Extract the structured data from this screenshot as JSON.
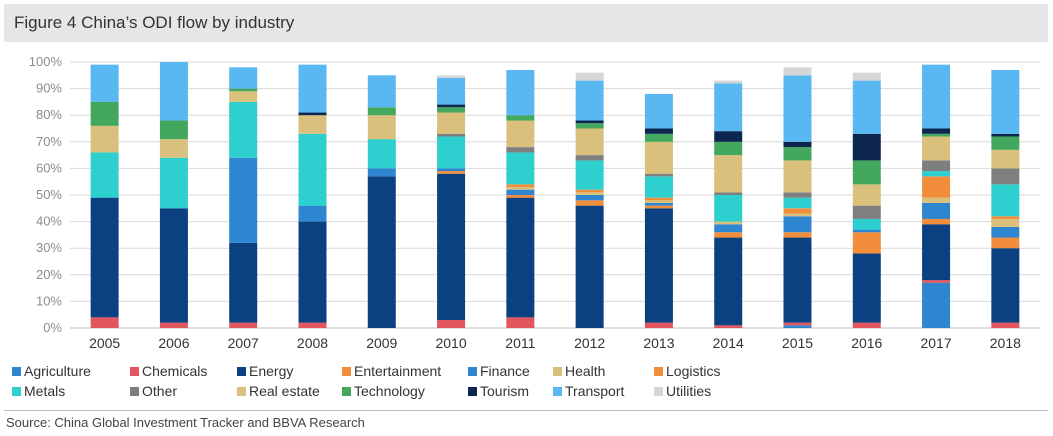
{
  "title": "Figure 4 China’s ODI flow by industry",
  "source": "Source: China Global Investment Tracker and BBVA Research",
  "chart_data": {
    "type": "bar",
    "stacked": true,
    "percent": true,
    "categories": [
      "2005",
      "2006",
      "2007",
      "2008",
      "2009",
      "2010",
      "2011",
      "2012",
      "2013",
      "2014",
      "2015",
      "2016",
      "2017",
      "2018"
    ],
    "ylim": [
      0,
      100
    ],
    "yticks": [
      "0%",
      "10%",
      "20%",
      "30%",
      "40%",
      "50%",
      "60%",
      "70%",
      "80%",
      "90%",
      "100%"
    ],
    "grid": true,
    "legend_position": "bottom",
    "series": [
      {
        "name": "Agriculture",
        "color": "#2e86d1",
        "values": [
          0,
          0,
          0,
          0,
          0,
          0,
          0,
          0,
          0,
          0,
          1,
          0,
          17,
          0
        ]
      },
      {
        "name": "Chemicals",
        "color": "#e4565f",
        "values": [
          4,
          2,
          2,
          2,
          0,
          3,
          4,
          0,
          2,
          1,
          1,
          2,
          1,
          2
        ]
      },
      {
        "name": "Energy",
        "color": "#0b4180",
        "values": [
          45,
          43,
          30,
          38,
          57,
          55,
          45,
          46,
          43,
          33,
          32,
          26,
          21,
          28
        ]
      },
      {
        "name": "Entertainment",
        "color": "#f28d3b",
        "values": [
          0,
          0,
          0,
          0,
          0,
          1,
          1,
          2,
          1,
          2,
          2,
          8,
          2,
          4
        ]
      },
      {
        "name": "Finance",
        "color": "#2e86d1",
        "values": [
          0,
          0,
          32,
          6,
          3,
          1,
          2,
          2,
          1,
          3,
          6,
          1,
          6,
          4
        ]
      },
      {
        "name": "Health",
        "color": "#d9c07c",
        "values": [
          0,
          0,
          0,
          0,
          0,
          0,
          1,
          1,
          1,
          1,
          1,
          0,
          2,
          3
        ]
      },
      {
        "name": "Logistics",
        "color": "#f28d3b",
        "values": [
          0,
          0,
          0,
          0,
          0,
          0,
          1,
          1,
          1,
          0,
          2,
          0,
          8,
          1
        ]
      },
      {
        "name": "Metals",
        "color": "#2ecfcf",
        "values": [
          17,
          19,
          21,
          27,
          11,
          12,
          12,
          11,
          8,
          10,
          4,
          4,
          2,
          12
        ]
      },
      {
        "name": "Other",
        "color": "#7f7f7f",
        "values": [
          0,
          0,
          0,
          0,
          0,
          1,
          2,
          2,
          1,
          1,
          2,
          5,
          4,
          6
        ]
      },
      {
        "name": "Real estate",
        "color": "#d9c07c",
        "values": [
          10,
          7,
          4,
          7,
          9,
          8,
          10,
          10,
          12,
          14,
          12,
          8,
          9,
          7
        ]
      },
      {
        "name": "Technology",
        "color": "#43a85e",
        "values": [
          9,
          7,
          1,
          0,
          3,
          2,
          2,
          2,
          3,
          5,
          5,
          9,
          1,
          5
        ]
      },
      {
        "name": "Tourism",
        "color": "#0d2650",
        "values": [
          0,
          0,
          0,
          1,
          0,
          1,
          0,
          1,
          2,
          4,
          2,
          10,
          2,
          1
        ]
      },
      {
        "name": "Transport",
        "color": "#59b8f2",
        "values": [
          14,
          22,
          8,
          18,
          12,
          10,
          17,
          15,
          13,
          18,
          25,
          20,
          24,
          24
        ]
      },
      {
        "name": "Utilities",
        "color": "#d6d6d6",
        "values": [
          0,
          0,
          0,
          0,
          0,
          1,
          0,
          3,
          0,
          1,
          3,
          3,
          0,
          0
        ]
      }
    ],
    "colors": {
      "grid": "#d9d9d9",
      "axis_text": "#8c8c8c",
      "category_text": "#333333"
    }
  }
}
